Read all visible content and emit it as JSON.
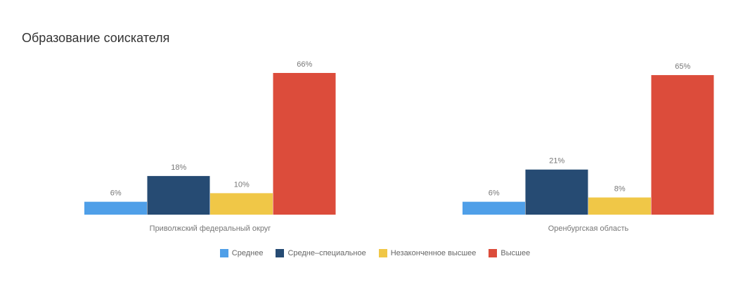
{
  "title": "Образование соискателя",
  "chart_data": {
    "type": "bar",
    "title": "Образование соискателя",
    "categories": [
      "Приволжский федеральный округ",
      "Оренбургская область"
    ],
    "series": [
      {
        "name": "Среднее",
        "color": "#4f9fe8",
        "values": [
          6,
          6
        ],
        "labels": [
          "6%",
          "6%"
        ]
      },
      {
        "name": "Средне–специальное",
        "color": "#264b73",
        "values": [
          18,
          21
        ],
        "labels": [
          "18%",
          "21%"
        ]
      },
      {
        "name": "Незаконченное высшее",
        "color": "#f0c747",
        "values": [
          10,
          8
        ],
        "labels": [
          "10%",
          "8%"
        ]
      },
      {
        "name": "Высшее",
        "color": "#dc4c3b",
        "values": [
          66,
          65
        ],
        "labels": [
          "66%",
          "65%"
        ]
      }
    ],
    "ylim": [
      0,
      66
    ],
    "grid": false,
    "legend_position": "bottom"
  }
}
